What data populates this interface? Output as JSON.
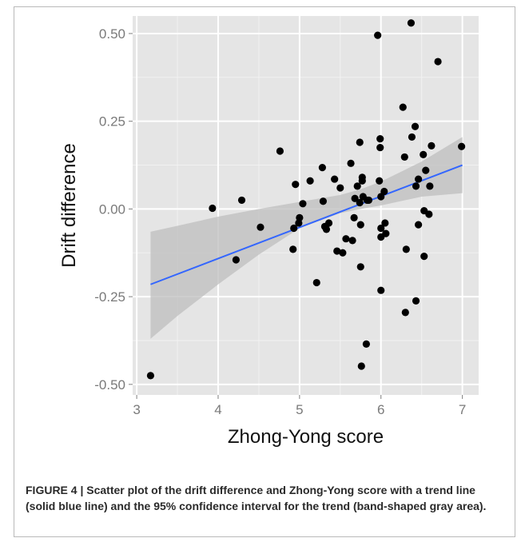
{
  "caption": {
    "label": "FIGURE 4 | ",
    "text": "Scatter plot of the drift difference and Zhong-Yong score with a trend line (solid blue line) and the 95% confidence interval for the trend (band-shaped gray area)."
  },
  "colors": {
    "panel_background": "#e5e5e5",
    "grid_major": "#ffffff",
    "grid_minor": "#f2f2f2",
    "points": "#000000",
    "trend_line": "#3366ff",
    "confidence_band": "#bdbdbd"
  },
  "chart_data": {
    "type": "scatter",
    "title": "",
    "xlabel": "Zhong-Yong score",
    "ylabel": "Drift difference",
    "xlim": [
      2.95,
      7.2
    ],
    "ylim": [
      -0.53,
      0.55
    ],
    "x_ticks": [
      3,
      4,
      5,
      6,
      7
    ],
    "x_tick_labels": [
      "3",
      "4",
      "5",
      "6",
      "7"
    ],
    "y_ticks": [
      -0.5,
      -0.25,
      0.0,
      0.25,
      0.5
    ],
    "y_tick_labels": [
      "-0.50",
      "-0.25",
      "0.00",
      "0.25",
      "0.50"
    ],
    "grid": true,
    "legend": "none",
    "series": [
      {
        "points": [
          [
            3.17,
            -0.475
          ],
          [
            3.93,
            0.002
          ],
          [
            4.22,
            -0.145
          ],
          [
            4.29,
            0.025
          ],
          [
            4.52,
            -0.052
          ],
          [
            4.76,
            0.165
          ],
          [
            4.92,
            -0.115
          ],
          [
            4.93,
            -0.055
          ],
          [
            4.95,
            0.07
          ],
          [
            4.99,
            -0.04
          ],
          [
            5.0,
            -0.025
          ],
          [
            5.04,
            0.015
          ],
          [
            5.13,
            0.08
          ],
          [
            5.21,
            -0.21
          ],
          [
            5.28,
            0.118
          ],
          [
            5.29,
            0.022
          ],
          [
            5.31,
            -0.05
          ],
          [
            5.33,
            -0.058
          ],
          [
            5.36,
            -0.04
          ],
          [
            5.43,
            0.085
          ],
          [
            5.46,
            -0.12
          ],
          [
            5.5,
            0.06
          ],
          [
            5.53,
            -0.125
          ],
          [
            5.57,
            -0.085
          ],
          [
            5.63,
            0.13
          ],
          [
            5.65,
            -0.09
          ],
          [
            5.67,
            -0.025
          ],
          [
            5.68,
            0.03
          ],
          [
            5.71,
            0.065
          ],
          [
            5.74,
            0.19
          ],
          [
            5.74,
            0.018
          ],
          [
            5.75,
            -0.045
          ],
          [
            5.75,
            -0.165
          ],
          [
            5.76,
            -0.448
          ],
          [
            5.77,
            0.09
          ],
          [
            5.77,
            0.08
          ],
          [
            5.78,
            0.035
          ],
          [
            5.82,
            -0.385
          ],
          [
            5.83,
            0.025
          ],
          [
            5.85,
            0.025
          ],
          [
            5.96,
            0.495
          ],
          [
            5.98,
            0.08
          ],
          [
            5.99,
            0.2
          ],
          [
            5.99,
            0.175
          ],
          [
            6.0,
            0.035
          ],
          [
            6.0,
            -0.055
          ],
          [
            6.0,
            -0.08
          ],
          [
            6.0,
            -0.232
          ],
          [
            6.04,
            0.05
          ],
          [
            6.05,
            -0.04
          ],
          [
            6.06,
            -0.07
          ],
          [
            6.27,
            0.29
          ],
          [
            6.29,
            0.148
          ],
          [
            6.3,
            -0.295
          ],
          [
            6.31,
            -0.115
          ],
          [
            6.37,
            0.53
          ],
          [
            6.38,
            0.205
          ],
          [
            6.42,
            0.235
          ],
          [
            6.43,
            0.065
          ],
          [
            6.43,
            -0.262
          ],
          [
            6.46,
            0.085
          ],
          [
            6.46,
            -0.045
          ],
          [
            6.52,
            0.155
          ],
          [
            6.53,
            -0.005
          ],
          [
            6.53,
            -0.135
          ],
          [
            6.55,
            0.11
          ],
          [
            6.59,
            -0.015
          ],
          [
            6.6,
            0.065
          ],
          [
            6.62,
            0.18
          ],
          [
            6.7,
            0.42
          ],
          [
            6.99,
            0.178
          ]
        ]
      }
    ],
    "trend_line": {
      "x": [
        3.17,
        7.0
      ],
      "y": [
        -0.215,
        0.125
      ]
    },
    "confidence_band": {
      "x": [
        3.17,
        3.5,
        4.0,
        4.5,
        5.0,
        5.5,
        5.75,
        6.0,
        6.5,
        7.0
      ],
      "lower": [
        -0.37,
        -0.305,
        -0.215,
        -0.13,
        -0.055,
        -0.012,
        0.0,
        0.01,
        0.035,
        0.045
      ],
      "upper": [
        -0.065,
        -0.048,
        -0.022,
        0.0,
        0.02,
        0.04,
        0.056,
        0.078,
        0.135,
        0.205
      ]
    }
  }
}
